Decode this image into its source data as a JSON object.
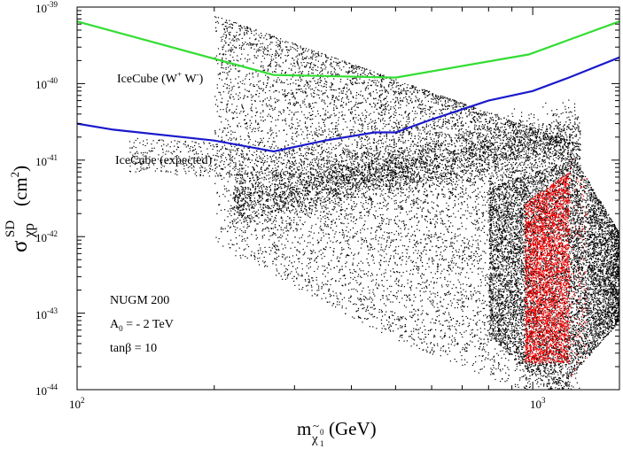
{
  "chart_data": {
    "type": "scatter",
    "x_scale": "log",
    "y_scale": "log",
    "xlim": [
      100,
      1550
    ],
    "ylim": [
      1e-44,
      1e-39
    ],
    "xlabel": {
      "base": "m",
      "sub_symbol": "χ",
      "sub_tilde": "~",
      "sub_super": "0",
      "sub_sub": "1",
      "unit": "(GeV)"
    },
    "ylabel": {
      "base": "σ",
      "sup": "SD",
      "sub": "χp",
      "unit": "(cm",
      "unit_sup": "2",
      "unit_close": ")"
    },
    "x_ticks": [
      {
        "value": 100,
        "label": "10",
        "sup": "2"
      },
      {
        "value": 1000,
        "label": "10",
        "sup": "3"
      }
    ],
    "y_ticks": [
      {
        "exp": -39,
        "label": "10",
        "sup": "-39"
      },
      {
        "exp": -40,
        "label": "10",
        "sup": "-40"
      },
      {
        "exp": -41,
        "label": "10",
        "sup": "-41"
      },
      {
        "exp": -42,
        "label": "10",
        "sup": "-42"
      },
      {
        "exp": -43,
        "label": "10",
        "sup": "-43"
      },
      {
        "exp": -44,
        "label": "10",
        "sup": "-44"
      }
    ],
    "lines": [
      {
        "name": "IceCube (W+ W-)",
        "label_text": "IceCube (W",
        "label_sup1": "+",
        "label_mid": " W",
        "label_sup2": "-",
        "label_close": ")",
        "color": "#33dd33",
        "points": [
          [
            100,
            6.5e-40
          ],
          [
            270,
            1.3e-40
          ],
          [
            500,
            1.2e-40
          ],
          [
            980,
            2.4e-40
          ],
          [
            1550,
            6.5e-40
          ]
        ]
      },
      {
        "name": "IceCube (expected)",
        "label_text": "IceCube (expected)",
        "color": "#1a1acc",
        "points": [
          [
            100,
            3e-41
          ],
          [
            120,
            2.5e-41
          ],
          [
            200,
            1.8e-41
          ],
          [
            270,
            1.3e-41
          ],
          [
            350,
            1.8e-41
          ],
          [
            450,
            2.3e-41
          ],
          [
            500,
            2.3e-41
          ],
          [
            600,
            3.4e-41
          ],
          [
            800,
            6e-41
          ],
          [
            1000,
            8e-41
          ],
          [
            1200,
            1.2e-40
          ],
          [
            1550,
            2.2e-40
          ]
        ]
      }
    ],
    "scatter_series": [
      {
        "name": "NUGM 200 points",
        "color": "#000000"
      },
      {
        "name": "highlighted points",
        "color": "#ff0000"
      }
    ],
    "annotation": {
      "model": "NUGM 200",
      "a0_base": "A",
      "a0_sub": "0",
      "a0_value": " = - 2 TeV",
      "tanb": "tanβ = 10"
    }
  }
}
